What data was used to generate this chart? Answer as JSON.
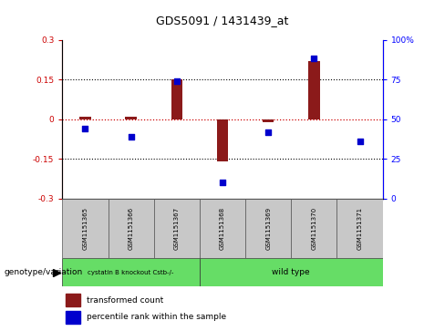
{
  "title": "GDS5091 / 1431439_at",
  "samples": [
    "GSM1151365",
    "GSM1151366",
    "GSM1151367",
    "GSM1151368",
    "GSM1151369",
    "GSM1151370",
    "GSM1151371"
  ],
  "transformed_count": [
    0.01,
    0.01,
    0.15,
    -0.16,
    -0.01,
    0.22,
    0.0
  ],
  "percentile_rank": [
    44,
    39,
    74,
    10,
    42,
    88,
    36
  ],
  "ylim_left": [
    -0.3,
    0.3
  ],
  "ylim_right": [
    0,
    100
  ],
  "yticks_left": [
    -0.3,
    -0.15,
    0,
    0.15,
    0.3
  ],
  "yticks_right": [
    0,
    25,
    50,
    75,
    100
  ],
  "ytick_labels_left": [
    "-0.3",
    "-0.15",
    "0",
    "0.15",
    "0.3"
  ],
  "ytick_labels_right": [
    "0",
    "25",
    "50",
    "75",
    "100%"
  ],
  "bar_color": "#8B1A1A",
  "dot_color": "#0000CD",
  "zero_line_color": "#CC0000",
  "groups": [
    {
      "label": "cystatin B knockout Cstb-/-",
      "start": 0,
      "end": 3,
      "color": "#66DD66"
    },
    {
      "label": "wild type",
      "start": 3,
      "end": 7,
      "color": "#66DD66"
    }
  ],
  "genotype_label": "genotype/variation",
  "legend_items": [
    {
      "color": "#8B1A1A",
      "label": "transformed count"
    },
    {
      "color": "#0000CD",
      "label": "percentile rank within the sample"
    }
  ],
  "sample_box_color": "#C8C8C8",
  "bar_width": 0.25,
  "dot_size": 22,
  "title_fontsize": 9,
  "tick_fontsize": 6.5,
  "sample_fontsize": 5,
  "legend_fontsize": 6.5
}
